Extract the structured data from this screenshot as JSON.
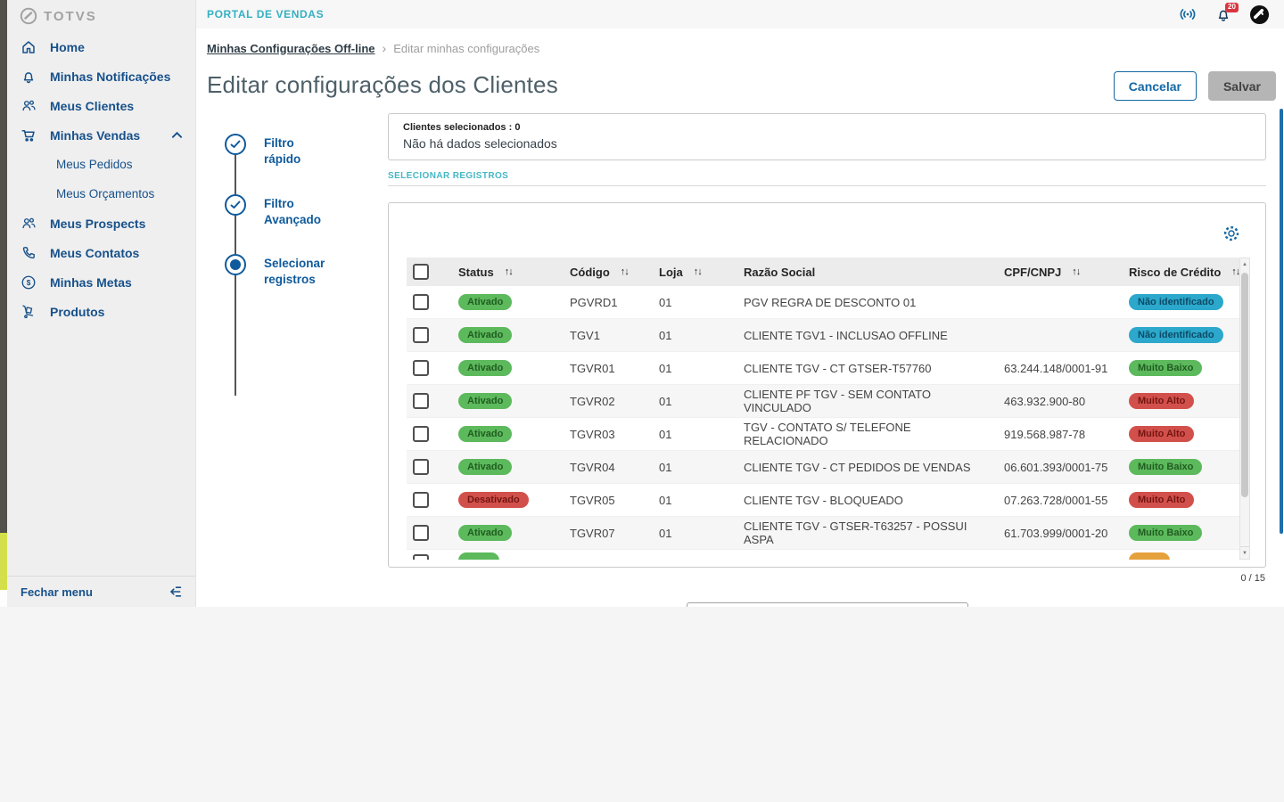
{
  "topbar": {
    "app_title": "PORTAL DE VENDAS",
    "notification_count": "20"
  },
  "breadcrumb": {
    "parent": "Minhas Configurações Off-line",
    "separator": "›",
    "current": "Editar minhas configurações"
  },
  "page": {
    "title": "Editar configurações dos Clientes",
    "cancel_label": "Cancelar",
    "save_label": "Salvar"
  },
  "sidebar": {
    "logo_text": "TOTVS",
    "items": [
      {
        "label": "Home"
      },
      {
        "label": "Minhas Notificações"
      },
      {
        "label": "Meus Clientes"
      },
      {
        "label": "Minhas Vendas"
      },
      {
        "label": "Meus Pedidos"
      },
      {
        "label": "Meus Orçamentos"
      },
      {
        "label": "Meus Prospects"
      },
      {
        "label": "Meus Contatos"
      },
      {
        "label": "Minhas Metas"
      },
      {
        "label": "Produtos"
      }
    ],
    "close_label": "Fechar menu"
  },
  "stepper": {
    "steps": [
      {
        "line1": "Filtro",
        "line2": "rápido",
        "state": "done"
      },
      {
        "line1": "Filtro",
        "line2": "Avançado",
        "state": "done"
      },
      {
        "line1": "Selecionar",
        "line2": "registros",
        "state": "current"
      }
    ]
  },
  "selection": {
    "title": "Clientes selecionados : 0",
    "empty_text": "Não há dados selecionados",
    "section_label": "SELECIONAR REGISTROS"
  },
  "table": {
    "columns": [
      {
        "label": "Status",
        "sortable": true
      },
      {
        "label": "Código",
        "sortable": true
      },
      {
        "label": "Loja",
        "sortable": true
      },
      {
        "label": "Razão Social",
        "sortable": false
      },
      {
        "label": "CPF/CNPJ",
        "sortable": true
      },
      {
        "label": "Risco de Crédito",
        "sortable": true
      }
    ],
    "sort_icon": "↑↓",
    "rows": [
      {
        "status": "Ativado",
        "status_type": "success",
        "codigo": "PGVRD1",
        "loja": "01",
        "razao": "PGV REGRA DE DESCONTO 01",
        "cpf": "",
        "risco": "Não identificado",
        "risco_type": "info"
      },
      {
        "status": "Ativado",
        "status_type": "success",
        "codigo": "TGV1",
        "loja": "01",
        "razao": "CLIENTE TGV1 - INCLUSAO OFFLINE",
        "cpf": "",
        "risco": "Não identificado",
        "risco_type": "info"
      },
      {
        "status": "Ativado",
        "status_type": "success",
        "codigo": "TGVR01",
        "loja": "01",
        "razao": "CLIENTE TGV - CT GTSER-T57760",
        "cpf": "63.244.148/0001-91",
        "risco": "Muito Baixo",
        "risco_type": "success"
      },
      {
        "status": "Ativado",
        "status_type": "success",
        "codigo": "TGVR02",
        "loja": "01",
        "razao": "CLIENTE PF TGV - SEM CONTATO VINCULADO",
        "cpf": "463.932.900-80",
        "risco": "Muito Alto",
        "risco_type": "danger"
      },
      {
        "status": "Ativado",
        "status_type": "success",
        "codigo": "TGVR03",
        "loja": "01",
        "razao": "TGV - CONTATO S/ TELEFONE RELACIONADO",
        "cpf": "919.568.987-78",
        "risco": "Muito Alto",
        "risco_type": "danger"
      },
      {
        "status": "Ativado",
        "status_type": "success",
        "codigo": "TGVR04",
        "loja": "01",
        "razao": "CLIENTE TGV - CT PEDIDOS DE VENDAS",
        "cpf": "06.601.393/0001-75",
        "risco": "Muito Baixo",
        "risco_type": "success"
      },
      {
        "status": "Desativado",
        "status_type": "danger",
        "codigo": "TGVR05",
        "loja": "01",
        "razao": "CLIENTE TGV - BLOQUEADO",
        "cpf": "07.263.728/0001-55",
        "risco": "Muito Alto",
        "risco_type": "danger"
      },
      {
        "status": "Ativado",
        "status_type": "success",
        "codigo": "TGVR07",
        "loja": "01",
        "razao": "CLIENTE TGV - GTSER-T63257 - POSSUI ASPA",
        "cpf": "61.703.999/0001-20",
        "risco": "Muito Baixo",
        "risco_type": "success"
      }
    ],
    "partial_row": {
      "status_type": "success",
      "risco_type": "warning"
    },
    "count": "0 / 15"
  },
  "colors": {
    "primary_blue": "#1368a4",
    "sidebar_blue": "#17518b",
    "teal_accent": "#35b0c2",
    "success_green": "#5cb95c",
    "danger_red": "#d2504b",
    "info_cyan": "#2ba8cb",
    "warning_orange": "#e5a23c",
    "notification_red": "#d8363f",
    "page_scrollbar_blue": "#1e6fad",
    "edge_lime": "#d4e04b"
  }
}
